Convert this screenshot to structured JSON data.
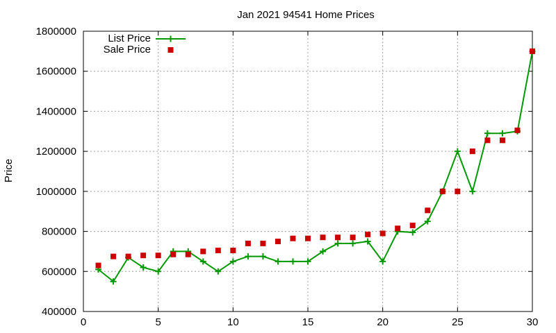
{
  "chart_data": {
    "type": "line",
    "title": "Jan 2021 94541 Home Prices",
    "xlabel": "",
    "ylabel": "Price",
    "xlim": [
      0,
      30
    ],
    "ylim": [
      400000,
      1800000
    ],
    "x_ticks": [
      0,
      5,
      10,
      15,
      20,
      25,
      30
    ],
    "y_ticks": [
      400000,
      600000,
      800000,
      1000000,
      1200000,
      1400000,
      1600000,
      1800000
    ],
    "grid": true,
    "legend_position": "top-left",
    "series": [
      {
        "name": "List Price",
        "style": "line-with-plus-markers",
        "color": "#009900",
        "x": [
          1,
          2,
          3,
          4,
          5,
          6,
          7,
          8,
          9,
          10,
          11,
          12,
          13,
          14,
          15,
          16,
          17,
          18,
          19,
          20,
          21,
          22,
          23,
          24,
          25,
          26,
          27,
          28,
          29,
          30
        ],
        "y": [
          610000,
          550000,
          670000,
          620000,
          600000,
          700000,
          700000,
          650000,
          600000,
          650000,
          675000,
          675000,
          650000,
          650000,
          650000,
          700000,
          740000,
          740000,
          750000,
          650000,
          800000,
          795000,
          850000,
          1000000,
          1200000,
          1000000,
          1290000,
          1290000,
          1300000,
          1700000
        ]
      },
      {
        "name": "Sale Price",
        "style": "square-markers",
        "color": "#cc0000",
        "x": [
          1,
          2,
          3,
          4,
          5,
          6,
          7,
          8,
          9,
          10,
          11,
          12,
          13,
          14,
          15,
          16,
          17,
          18,
          19,
          20,
          21,
          22,
          23,
          24,
          25,
          26,
          27,
          28,
          29,
          30
        ],
        "y": [
          630000,
          675000,
          675000,
          680000,
          680000,
          685000,
          685000,
          700000,
          705000,
          705000,
          740000,
          740000,
          750000,
          765000,
          765000,
          770000,
          770000,
          770000,
          785000,
          790000,
          815000,
          830000,
          905000,
          1000000,
          1000000,
          1200000,
          1255000,
          1255000,
          1305000,
          1700000
        ]
      }
    ]
  }
}
